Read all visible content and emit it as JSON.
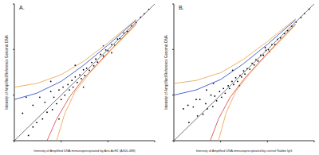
{
  "chart_data": [
    {
      "type": "scatter",
      "title": "A.",
      "x_label": "Intensity of Amplified DNA immunoprecipitated by Anti-AcH2 (A300-488)",
      "y_label": "Intensity of Amplified Reference Genomic DNA",
      "log": true,
      "xlim": [
        100,
        100000
      ],
      "ylim": [
        100,
        100000
      ],
      "xticks": [
        100,
        1000,
        10000,
        100000
      ],
      "yticks": [
        100,
        1000,
        10000,
        100000
      ],
      "tick_labels": false,
      "series": [
        {
          "type": "scatter",
          "color": "#000000",
          "marker": "dot",
          "x": [
            150,
            200,
            250,
            300,
            350,
            400,
            450,
            500,
            600,
            650,
            700,
            800,
            900,
            1000,
            1100,
            1200,
            1400,
            1500,
            1700,
            1800,
            2000,
            2200,
            2500,
            2700,
            3000,
            3200,
            3500,
            4000,
            4500,
            5000,
            5500,
            6000,
            7000,
            8000,
            9000,
            10000,
            12000,
            14000,
            16000,
            18000,
            22000,
            26000,
            32000,
            40000,
            50000,
            60000,
            75000,
            900,
            600,
            3000,
            2000,
            8000,
            12000,
            250,
            180
          ],
          "values": [
            400,
            130,
            600,
            250,
            900,
            300,
            700,
            420,
            1200,
            480,
            900,
            650,
            1300,
            800,
            1500,
            1000,
            1700,
            1300,
            2100,
            1500,
            2500,
            1900,
            2800,
            2300,
            3600,
            2700,
            3900,
            3500,
            5200,
            4400,
            6200,
            5300,
            7800,
            7200,
            9800,
            9400,
            13000,
            12500,
            17000,
            17500,
            23000,
            25000,
            33000,
            39000,
            51000,
            61000,
            76000,
            300,
            2000,
            1500,
            4500,
            12000,
            8500,
            200,
            900
          ]
        },
        {
          "type": "line",
          "color": "#555555",
          "line_style": "solid",
          "x": [
            100,
            100000
          ],
          "values": [
            100,
            100000
          ]
        },
        {
          "type": "line",
          "color": "#e8a040",
          "line_style": "solid",
          "x": [
            100,
            300,
            1000,
            3000,
            10000,
            40000
          ],
          "values": [
            1500,
            1800,
            2800,
            5500,
            14000,
            46000
          ]
        },
        {
          "type": "line",
          "color": "#2040c0",
          "line_style": "solid",
          "x": [
            100,
            300,
            1000,
            3000,
            10000,
            40000
          ],
          "values": [
            800,
            1100,
            2000,
            4500,
            12500,
            44000
          ]
        },
        {
          "type": "line",
          "color": "#d04040",
          "line_style": "solid",
          "x": [
            500,
            800,
            1500,
            3000,
            10000,
            40000
          ],
          "values": [
            100,
            300,
            900,
            2300,
            8500,
            37000
          ]
        },
        {
          "type": "line",
          "color": "#e8a040",
          "line_style": "solid",
          "x": [
            800,
            1200,
            2000,
            4000,
            12000,
            40000
          ],
          "values": [
            100,
            400,
            1200,
            3000,
            10000,
            35000
          ]
        }
      ]
    },
    {
      "type": "scatter",
      "title": "B.",
      "x_label": "Intensity of Amplified DNA immunoprecipitated by control Rabbit IgG",
      "y_label": "Intensity of Amplified Reference Genomic DNA",
      "log": true,
      "xlim": [
        100,
        100000
      ],
      "ylim": [
        100,
        100000
      ],
      "xticks": [
        100,
        1000,
        10000,
        100000
      ],
      "yticks": [
        100,
        1000,
        10000,
        100000
      ],
      "tick_labels": false,
      "series": [
        {
          "type": "scatter",
          "color": "#000000",
          "marker": "dot",
          "x": [
            160,
            210,
            260,
            320,
            360,
            420,
            480,
            520,
            620,
            680,
            750,
            820,
            950,
            1050,
            1150,
            1250,
            1450,
            1550,
            1750,
            1900,
            2100,
            2300,
            2600,
            2800,
            3100,
            3300,
            3700,
            4200,
            4700,
            5200,
            5700,
            6300,
            7200,
            8200,
            9300,
            10500,
            12500,
            14500,
            16500,
            19000,
            23000,
            27000,
            33000,
            41000,
            52000,
            62000,
            78000,
            700,
            500,
            2500,
            1800,
            9000,
            11000,
            300,
            200
          ],
          "values": [
            500,
            250,
            550,
            350,
            800,
            380,
            650,
            500,
            1000,
            560,
            950,
            750,
            1200,
            900,
            1400,
            1100,
            1600,
            1400,
            2000,
            1700,
            2400,
            2000,
            2700,
            2500,
            3400,
            2900,
            3800,
            3700,
            5000,
            4600,
            6000,
            5600,
            7500,
            7500,
            9600,
            9900,
            12800,
            13000,
            16800,
            18000,
            22500,
            26000,
            32500,
            40000,
            50500,
            61500,
            77000,
            1800,
            1300,
            1600,
            3500,
            11000,
            9000,
            800,
            600
          ]
        },
        {
          "type": "line",
          "color": "#555555",
          "line_style": "solid",
          "x": [
            100,
            100000
          ],
          "values": [
            100,
            100000
          ]
        },
        {
          "type": "line",
          "color": "#e8a040",
          "line_style": "solid",
          "x": [
            100,
            300,
            1000,
            3000,
            10000,
            40000
          ],
          "values": [
            1800,
            2100,
            3100,
            6000,
            15000,
            47000
          ]
        },
        {
          "type": "line",
          "color": "#2040c0",
          "line_style": "solid",
          "x": [
            100,
            300,
            1000,
            3000,
            10000,
            40000
          ],
          "values": [
            1000,
            1300,
            2200,
            4800,
            13000,
            45000
          ]
        },
        {
          "type": "line",
          "color": "#d04040",
          "line_style": "solid",
          "x": [
            600,
            900,
            1600,
            3200,
            10000,
            40000
          ],
          "values": [
            100,
            300,
            900,
            2300,
            8300,
            36500
          ]
        },
        {
          "type": "line",
          "color": "#e8a040",
          "line_style": "solid",
          "x": [
            900,
            1300,
            2100,
            4200,
            12000,
            40000
          ],
          "values": [
            100,
            400,
            1200,
            3000,
            9700,
            34500
          ]
        }
      ]
    }
  ]
}
